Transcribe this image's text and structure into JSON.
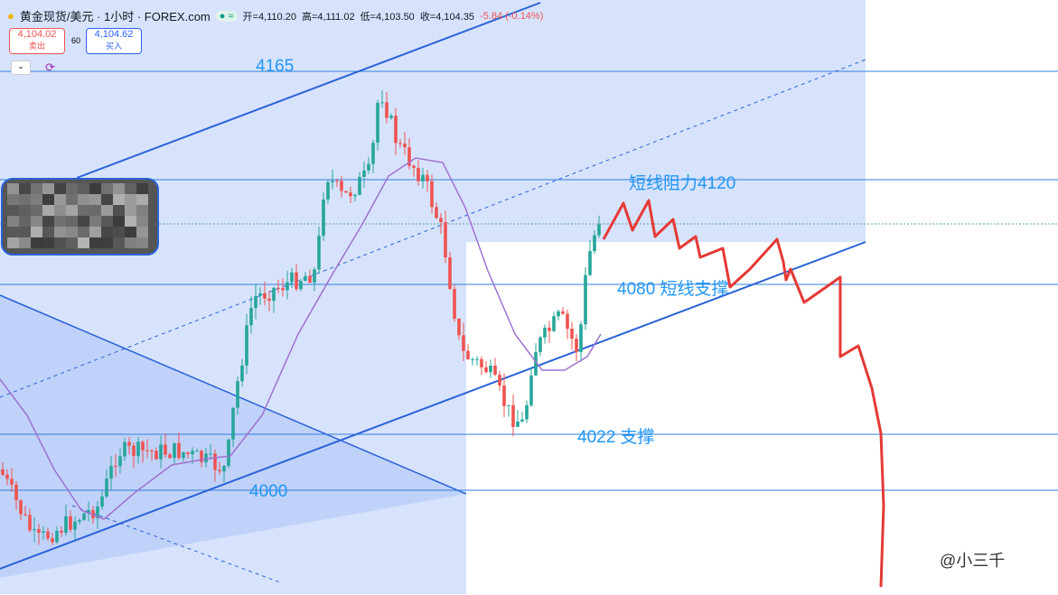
{
  "header": {
    "title": "黄金现货/美元 · 1小时 · FOREX.com",
    "ohlc": [
      "开=4,110.20",
      "高=4,111.02",
      "低=4,103.50",
      "收=4,104.35"
    ],
    "change": "-5.84 (-0.14%)"
  },
  "trade": {
    "sell_price": "4,104.02",
    "sell_label": "卖出",
    "spread": "60",
    "buy_price": "4,104.62",
    "buy_label": "买入"
  },
  "annotations": [
    "4165",
    "短线阻力4120",
    "4080 短线支撑",
    "4022 支撑",
    "4000"
  ],
  "watermark": "@小三千"
}
